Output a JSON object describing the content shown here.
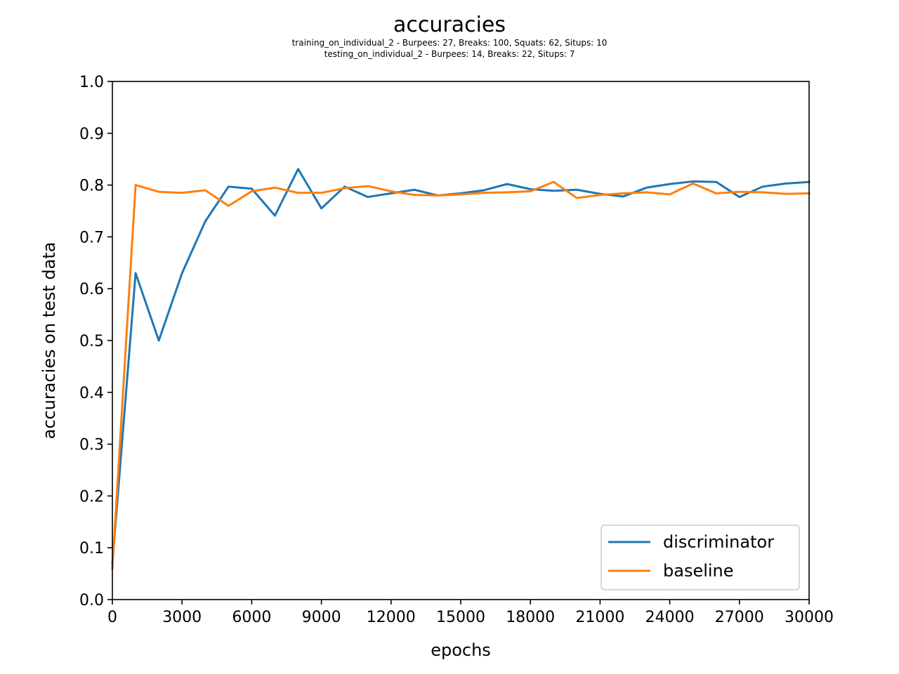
{
  "chart_data": {
    "type": "line",
    "title": "accuracies",
    "subtitle_lines": [
      "training_on_individual_2 - Burpees: 27, Breaks: 100, Squats: 62, Situps: 10",
      "testing_on_individual_2 - Burpees: 14, Breaks: 22, Situps: 7"
    ],
    "xlabel": "epochs",
    "ylabel": "accuracies on test data",
    "xlim": [
      0,
      30000
    ],
    "ylim": [
      0,
      1.0
    ],
    "xticks": [
      0,
      3000,
      6000,
      9000,
      12000,
      15000,
      18000,
      21000,
      24000,
      27000,
      30000
    ],
    "yticks": [
      0.0,
      0.1,
      0.2,
      0.3,
      0.4,
      0.5,
      0.6,
      0.7,
      0.8,
      0.9,
      1.0
    ],
    "ytick_labels": [
      "0.0",
      "0.1",
      "0.2",
      "0.3",
      "0.4",
      "0.5",
      "0.6",
      "0.7",
      "0.8",
      "0.9",
      "1.0"
    ],
    "grid": false,
    "legend_position": "lower-right",
    "x": [
      0,
      1000,
      2000,
      3000,
      4000,
      5000,
      6000,
      7000,
      8000,
      9000,
      10000,
      11000,
      12000,
      13000,
      14000,
      15000,
      16000,
      17000,
      18000,
      19000,
      20000,
      21000,
      22000,
      23000,
      24000,
      25000,
      26000,
      27000,
      28000,
      29000,
      30000
    ],
    "series": [
      {
        "name": "discriminator",
        "color": "#1f77b4",
        "values": [
          0.07,
          0.63,
          0.5,
          0.63,
          0.73,
          0.797,
          0.793,
          0.741,
          0.831,
          0.755,
          0.797,
          0.777,
          0.784,
          0.791,
          0.78,
          0.784,
          0.79,
          0.802,
          0.792,
          0.789,
          0.791,
          0.783,
          0.778,
          0.795,
          0.802,
          0.807,
          0.806,
          0.777,
          0.797,
          0.803,
          0.806
        ]
      },
      {
        "name": "baseline",
        "color": "#ff7f0e",
        "values": [
          0.06,
          0.8,
          0.787,
          0.785,
          0.79,
          0.76,
          0.788,
          0.795,
          0.785,
          0.785,
          0.794,
          0.798,
          0.788,
          0.781,
          0.78,
          0.782,
          0.785,
          0.786,
          0.788,
          0.806,
          0.775,
          0.781,
          0.784,
          0.786,
          0.782,
          0.803,
          0.784,
          0.787,
          0.786,
          0.783,
          0.784
        ]
      }
    ]
  }
}
